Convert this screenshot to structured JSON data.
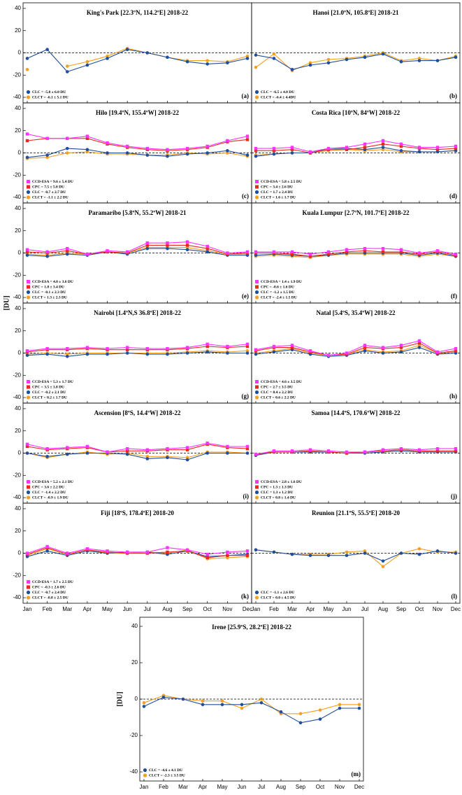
{
  "chart_data": [
    {
      "type": "line",
      "title": "King's Park [22.3ºN, 114.2ºE] 2018-22",
      "panel_label": "(a)",
      "ylim": [
        -45,
        45
      ],
      "yticks": [
        -40,
        -20,
        0,
        20,
        40
      ],
      "zero_line": true,
      "series": [
        {
          "name": "CLC = -5.8 ± 6.0 DU",
          "color": "#1f4e9c",
          "marker": "circle",
          "values": [
            -5,
            3,
            -17,
            -11,
            -5,
            3,
            0,
            -4,
            -8,
            -10,
            -9,
            -5
          ]
        },
        {
          "name": "CLCT = -6.1 ± 5.1 DU",
          "color": "#f5a020",
          "marker": "circle",
          "values": [
            -15,
            null,
            -12,
            -8,
            -3,
            4,
            0,
            -4,
            -7,
            -7,
            -8,
            -3
          ]
        }
      ]
    },
    {
      "type": "line",
      "title": "Hanoi [21.0ºN, 105.8ºE] 2018-21",
      "panel_label": "(b)",
      "ylim": [
        -45,
        45
      ],
      "zero_line": true,
      "series": [
        {
          "name": "CLC = -6.5 ± 4.0 DU",
          "color": "#1f4e9c",
          "marker": "circle",
          "values": [
            -2,
            -5,
            -15,
            -11,
            -9,
            -6,
            -4,
            -1,
            -8,
            -7,
            -7,
            -4
          ]
        },
        {
          "name": "CLCT = -6.4 ± 4.4DU",
          "color": "#f5a020",
          "marker": "circle",
          "values": [
            -13,
            -1,
            -16,
            -9,
            -6,
            -5,
            -3,
            0,
            -7,
            -5,
            -7,
            -3
          ]
        }
      ]
    },
    {
      "type": "line",
      "title": "Hilo [19.4ºN, 155.4ºW] 2018-22",
      "panel_label": "(c)",
      "ylim": [
        -45,
        45
      ],
      "yticks": [
        -40,
        -20,
        0,
        20,
        40
      ],
      "zero_line": true,
      "series": [
        {
          "name": "CCD-ESA = 9.6 ± 5.4 DU",
          "color": "#ff33ff",
          "marker": "square",
          "values": [
            17,
            13,
            13,
            15,
            9,
            6,
            4,
            3,
            4,
            6,
            11,
            15
          ]
        },
        {
          "name": "CPC = 7.5 ± 5.0 DU",
          "color": "#e8281e",
          "marker": "square",
          "values": [
            11,
            13,
            13,
            13,
            8,
            5,
            3,
            2,
            3,
            5,
            10,
            12
          ]
        },
        {
          "name": "CLC = -0.7 ± 2.7 DU",
          "color": "#1f4e9c",
          "marker": "circle",
          "values": [
            -4,
            -2,
            4,
            3,
            0,
            0,
            -2,
            -3,
            -1,
            0,
            2,
            -2
          ]
        },
        {
          "name": "CLCT = -1.1 ± 2.2 DU",
          "color": "#f5a020",
          "marker": "circle",
          "values": [
            -5,
            -4,
            0,
            1,
            -1,
            -1,
            -2,
            -2,
            0,
            -1,
            0,
            -3
          ]
        }
      ]
    },
    {
      "type": "line",
      "title": "Costa Rica [10ºN, 84ºW] 2018-22",
      "panel_label": "(d)",
      "ylim": [
        -45,
        45
      ],
      "zero_line": true,
      "series": [
        {
          "name": "CCD-ESA = 5.8 ± 2.5 DU",
          "color": "#ff33ff",
          "marker": "square",
          "values": [
            4,
            4,
            5,
            1,
            4,
            5,
            8,
            11,
            8,
            5,
            5,
            6
          ]
        },
        {
          "name": "CPC = 3.4 ± 2.6 DU",
          "color": "#e8281e",
          "marker": "square",
          "values": [
            2,
            2,
            3,
            0,
            3,
            3,
            5,
            8,
            6,
            4,
            3,
            4
          ]
        },
        {
          "name": "CLC = 1.7 ± 2.4 DU",
          "color": "#1f4e9c",
          "marker": "circle",
          "values": [
            -3,
            -1,
            0,
            0,
            4,
            4,
            3,
            5,
            2,
            1,
            1,
            2
          ]
        },
        {
          "name": "CLCT = 1.6 ± 1.7 DU",
          "color": "#f5a020",
          "marker": "circle",
          "values": [
            -2,
            -1,
            0,
            0,
            2,
            3,
            2,
            3,
            1,
            1,
            1,
            2
          ]
        }
      ]
    },
    {
      "type": "line",
      "title": "Paramaribo [5.8ºN, 55.2ºW] 2018-21",
      "panel_label": "(e)",
      "ylim": [
        -45,
        45
      ],
      "yticks": [
        -40,
        -20,
        0,
        20,
        40
      ],
      "zero_line": true,
      "series": [
        {
          "name": "CCD-ESA = 4.0 ± 3.6 DU",
          "color": "#ff33ff",
          "marker": "square",
          "values": [
            3,
            1,
            4,
            -1,
            2,
            1,
            9,
            9,
            10,
            6,
            0,
            1
          ]
        },
        {
          "name": "CPC = 1.8 ± 3.4 DU",
          "color": "#e8281e",
          "marker": "square",
          "values": [
            1,
            0,
            2,
            -1,
            1,
            0,
            7,
            7,
            7,
            4,
            -1,
            0
          ]
        },
        {
          "name": "CLC = -0.1 ± 2.3 DU",
          "color": "#1f4e9c",
          "marker": "circle",
          "values": [
            -2,
            -3,
            -1,
            -2,
            1,
            -1,
            4,
            4,
            3,
            1,
            -2,
            -2
          ]
        },
        {
          "name": "CLCT = 1.3 ± 2.3 DU",
          "color": "#f5a020",
          "marker": "circle",
          "values": [
            -1,
            -2,
            0,
            -1,
            1,
            0,
            5,
            5,
            5,
            2,
            -1,
            -1
          ]
        }
      ]
    },
    {
      "type": "line",
      "title": "Kuala Lumpur [2.7ºN, 101.7ºE] 2018-22",
      "panel_label": "(f)",
      "ylim": [
        -45,
        45
      ],
      "zero_line": true,
      "series": [
        {
          "name": "CCD-ESA = 1.4 ± 1.9 DU",
          "color": "#ff33ff",
          "marker": "square",
          "values": [
            1,
            1,
            1,
            -1,
            1,
            3,
            4,
            4,
            3,
            0,
            2,
            -1
          ]
        },
        {
          "name": "CPC = -0.6 ± 1.6 DU",
          "color": "#e8281e",
          "marker": "square",
          "values": [
            0,
            0,
            -1,
            -3,
            -1,
            1,
            2,
            1,
            1,
            -1,
            1,
            -2
          ]
        },
        {
          "name": "CLC = -1.2 ± 1.5 DU",
          "color": "#1f4e9c",
          "marker": "circle",
          "values": [
            -2,
            -1,
            -2,
            -3,
            -2,
            0,
            0,
            0,
            0,
            -2,
            0,
            -3
          ]
        },
        {
          "name": "CLCT = -2.4 ± 1.5 DU",
          "color": "#f5a020",
          "marker": "circle",
          "values": [
            -3,
            -2,
            -3,
            -4,
            -2,
            -1,
            -1,
            -1,
            -1,
            -3,
            -1,
            -3
          ]
        }
      ]
    },
    {
      "type": "line",
      "title": "Nairobi [1.4ºN,S 36.8ºE] 2018-22",
      "panel_label": "(g)",
      "ylabel": "[DU]",
      "ylim": [
        -45,
        45
      ],
      "yticks": [
        -40,
        -20,
        0,
        20,
        40
      ],
      "zero_line": true,
      "series": [
        {
          "name": "CCD-ESA = 5.3 ± 1.7 DU",
          "color": "#ff33ff",
          "marker": "square",
          "values": [
            2,
            4,
            4,
            5,
            4,
            5,
            4,
            4,
            5,
            8,
            6,
            8
          ]
        },
        {
          "name": "CPC = 3.5 ± 1.8 DU",
          "color": "#e8281e",
          "marker": "square",
          "values": [
            1,
            3,
            3,
            4,
            3,
            3,
            3,
            3,
            4,
            6,
            5,
            6
          ]
        },
        {
          "name": "CLC = -0.2 ± 2.1 DU",
          "color": "#1f4e9c",
          "marker": "circle",
          "values": [
            -2,
            -1,
            -3,
            -1,
            -1,
            0,
            -1,
            -1,
            0,
            1,
            0,
            0
          ]
        },
        {
          "name": "CLCT = 0.2 ± 1.7 DU",
          "color": "#f5a020",
          "marker": "circle",
          "values": [
            -1,
            0,
            -1,
            0,
            0,
            0,
            0,
            0,
            1,
            2,
            1,
            2
          ]
        }
      ]
    },
    {
      "type": "line",
      "title": "Natal [5.4ºS, 35.4ºW] 2018-22",
      "panel_label": "(h)",
      "ylim": [
        -45,
        45
      ],
      "zero_line": true,
      "series": [
        {
          "name": "CCD-ESA = 4.6 ± 3.5 DU",
          "color": "#ff33ff",
          "marker": "square",
          "values": [
            3,
            6,
            7,
            2,
            -2,
            0,
            7,
            5,
            7,
            11,
            1,
            4
          ]
        },
        {
          "name": "CPC = 2.7 ± 3.5 DU",
          "color": "#e8281e",
          "marker": "square",
          "values": [
            2,
            5,
            5,
            1,
            -2,
            -1,
            5,
            4,
            5,
            9,
            0,
            2
          ]
        },
        {
          "name": "CLC = 0.4 ± 2.2 DU",
          "color": "#1f4e9c",
          "marker": "circle",
          "values": [
            -1,
            1,
            3,
            -1,
            -3,
            -2,
            2,
            0,
            1,
            5,
            -1,
            0
          ]
        },
        {
          "name": "CLCT = 0.6 ± 2.2 DU",
          "color": "#f5a020",
          "marker": "circle",
          "values": [
            0,
            2,
            4,
            0,
            -2,
            -1,
            3,
            1,
            2,
            7,
            0,
            1
          ]
        }
      ]
    },
    {
      "type": "line",
      "title": "Ascension [8ºS, 14.4ºW] 2018-22",
      "panel_label": "(i)",
      "ylim": [
        -45,
        45
      ],
      "yticks": [
        -40,
        -20,
        0,
        20,
        40
      ],
      "zero_line": true,
      "series": [
        {
          "name": "CCD-ESA = 5.2 ± 2.1 DU",
          "color": "#ff33ff",
          "marker": "square",
          "values": [
            8,
            4,
            5,
            6,
            1,
            4,
            3,
            4,
            5,
            9,
            6,
            6
          ]
        },
        {
          "name": "CPC = 3.6 ± 2.2 DU",
          "color": "#e8281e",
          "marker": "square",
          "values": [
            6,
            3,
            4,
            5,
            1,
            2,
            2,
            3,
            3,
            8,
            5,
            4
          ]
        },
        {
          "name": "CLC = -1.4 ± 2.2 DU",
          "color": "#1f4e9c",
          "marker": "circle",
          "values": [
            0,
            -3,
            -1,
            0,
            0,
            -1,
            -5,
            -4,
            -6,
            0,
            0,
            0
          ]
        },
        {
          "name": "CLCT = -0.9 ± 1.9 DU",
          "color": "#f5a020",
          "marker": "circle",
          "values": [
            0,
            -4,
            -1,
            1,
            -1,
            0,
            -3,
            -3,
            -4,
            1,
            1,
            0
          ]
        }
      ]
    },
    {
      "type": "line",
      "title": "Samoa [14.4ºS, 170.6ºW] 2018-22",
      "panel_label": "(j)",
      "ylim": [
        -45,
        45
      ],
      "zero_line": true,
      "series": [
        {
          "name": "CCD-ESA = 2.8 ± 1.6 DU",
          "color": "#ff33ff",
          "marker": "square",
          "values": [
            -1,
            2,
            2,
            3,
            2,
            1,
            1,
            3,
            4,
            3,
            4,
            4
          ]
        },
        {
          "name": "CPC = 1.3 ± 1.3 DU",
          "color": "#e8281e",
          "marker": "square",
          "values": [
            -1,
            1,
            1,
            2,
            1,
            0,
            1,
            2,
            3,
            2,
            2,
            2
          ]
        },
        {
          "name": "CLC = 1.3 ± 1.2 DU",
          "color": "#1f4e9c",
          "marker": "circle",
          "values": [
            -2,
            1,
            1,
            1,
            1,
            0,
            0,
            1,
            2,
            1,
            1,
            1
          ]
        },
        {
          "name": "CLCT = 0.8 ± 1.4 DU",
          "color": "#f5a020",
          "marker": "circle",
          "values": [
            -2,
            1,
            1,
            1,
            1,
            0,
            1,
            2,
            3,
            2,
            1,
            1
          ]
        }
      ]
    },
    {
      "type": "line",
      "title": "Fiji [18ºS, 178.4ºE] 2018-20",
      "panel_label": "(k)",
      "ylim": [
        -45,
        45
      ],
      "yticks": [
        -40,
        -20,
        0,
        20,
        40
      ],
      "zero_line": true,
      "categories": [
        "Jan",
        "Feb",
        "Mar",
        "Apr",
        "May",
        "Jun",
        "Jul",
        "Aug",
        "Sep",
        "Oct",
        "Nov",
        "Dec"
      ],
      "series": [
        {
          "name": "CCD-ESA = 1.7 ± 2.5 DU",
          "color": "#ff33ff",
          "marker": "square",
          "values": [
            0,
            6,
            0,
            4,
            2,
            1,
            1,
            5,
            3,
            -1,
            1,
            2
          ]
        },
        {
          "name": "CPC = -0.3 ± 2.6 DU",
          "color": "#e8281e",
          "marker": "square",
          "values": [
            -1,
            5,
            -1,
            3,
            1,
            0,
            0,
            1,
            2,
            -4,
            -2,
            -2
          ]
        },
        {
          "name": "CLC = -0.7 ± 2.4 DU",
          "color": "#1f4e9c",
          "marker": "circle",
          "values": [
            -3,
            2,
            -2,
            2,
            0,
            1,
            1,
            -1,
            2,
            -3,
            -2,
            -1
          ]
        },
        {
          "name": "CLCT = -0.8 ± 2.5 DU",
          "color": "#f5a020",
          "marker": "circle",
          "values": [
            -2,
            4,
            -1,
            3,
            0,
            0,
            1,
            0,
            3,
            -5,
            -4,
            -3
          ]
        }
      ]
    },
    {
      "type": "line",
      "title": "Reunion [21.1ºS, 55.5ºE] 2018-20",
      "panel_label": "(l)",
      "ylim": [
        -45,
        45
      ],
      "zero_line": true,
      "categories": [
        "Jan",
        "Feb",
        "Mar",
        "Apr",
        "May",
        "Jun",
        "Jul",
        "Aug",
        "Sep",
        "Oct",
        "Nov",
        "Dec"
      ],
      "series": [
        {
          "name": "CLC = -1.1 ± 2.6 DU",
          "color": "#1f4e9c",
          "marker": "circle",
          "values": [
            3,
            1,
            -1,
            -2,
            -2,
            -2,
            0,
            -7,
            0,
            -1,
            2,
            0
          ]
        },
        {
          "name": "CLCT = 0.0 ± 4.5 DU",
          "color": "#f5a020",
          "marker": "circle",
          "values": [
            3,
            1,
            -1,
            -1,
            -1,
            1,
            2,
            -12,
            0,
            4,
            1,
            1
          ]
        }
      ]
    },
    {
      "type": "line",
      "title": "Irene [25.9ºS, 28.2ºE] 2018-22",
      "panel_label": "(m)",
      "ylabel": "[DU]",
      "ylim": [
        -45,
        45
      ],
      "yticks": [
        -40,
        -20,
        0,
        20,
        40
      ],
      "zero_line": true,
      "categories": [
        "Jan",
        "Feb",
        "Mar",
        "Apr",
        "May",
        "Jun",
        "Jul",
        "Aug",
        "Sep",
        "Oct",
        "Nov",
        "Dec"
      ],
      "series": [
        {
          "name": "CLC = -4.6 ± 4.1 DU",
          "color": "#1f4e9c",
          "marker": "circle",
          "values": [
            -4,
            1,
            0,
            -3,
            -3,
            -3,
            -2,
            -7,
            -13,
            -11,
            -5,
            -5
          ]
        },
        {
          "name": "CLCT = -2.3 ± 3.5 DU",
          "color": "#f5a020",
          "marker": "circle",
          "values": [
            -2,
            2,
            0,
            -1,
            -1,
            -5,
            0,
            -8,
            -8,
            -6,
            -3,
            -3
          ]
        }
      ]
    }
  ]
}
